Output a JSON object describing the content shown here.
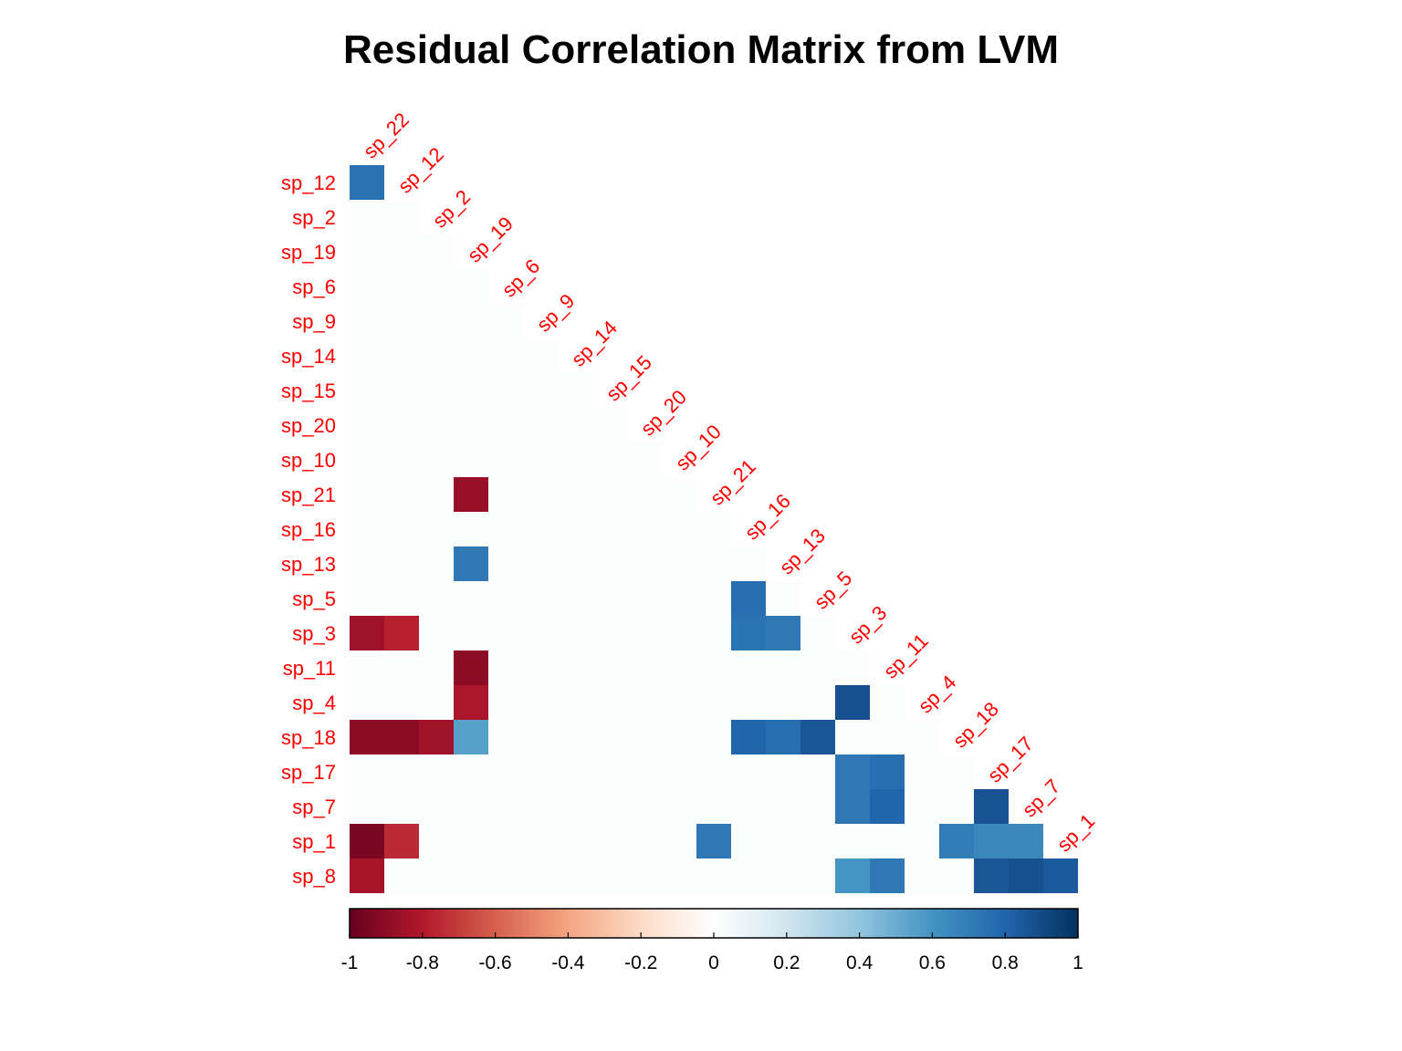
{
  "chart_data": {
    "type": "heatmap",
    "title": "Residual Correlation Matrix from LVM",
    "layout": "lower-triangle",
    "columns": [
      "sp_22",
      "sp_12",
      "sp_2",
      "sp_19",
      "sp_6",
      "sp_9",
      "sp_14",
      "sp_15",
      "sp_20",
      "sp_10",
      "sp_21",
      "sp_16",
      "sp_13",
      "sp_5",
      "sp_3",
      "sp_11",
      "sp_4",
      "sp_18",
      "sp_17",
      "sp_7",
      "sp_1"
    ],
    "rows": [
      "sp_12",
      "sp_2",
      "sp_19",
      "sp_6",
      "sp_9",
      "sp_14",
      "sp_15",
      "sp_20",
      "sp_10",
      "sp_21",
      "sp_16",
      "sp_13",
      "sp_5",
      "sp_3",
      "sp_11",
      "sp_4",
      "sp_18",
      "sp_17",
      "sp_7",
      "sp_1",
      "sp_8"
    ],
    "cells": [
      {
        "row": "sp_12",
        "col": "sp_22",
        "value": 0.75
      },
      {
        "row": "sp_21",
        "col": "sp_19",
        "value": -0.87
      },
      {
        "row": "sp_13",
        "col": "sp_19",
        "value": 0.72
      },
      {
        "row": "sp_5",
        "col": "sp_16",
        "value": 0.76
      },
      {
        "row": "sp_3",
        "col": "sp_22",
        "value": -0.85
      },
      {
        "row": "sp_3",
        "col": "sp_12",
        "value": -0.78
      },
      {
        "row": "sp_3",
        "col": "sp_16",
        "value": 0.74
      },
      {
        "row": "sp_3",
        "col": "sp_13",
        "value": 0.72
      },
      {
        "row": "sp_11",
        "col": "sp_19",
        "value": -0.9
      },
      {
        "row": "sp_4",
        "col": "sp_19",
        "value": -0.82
      },
      {
        "row": "sp_4",
        "col": "sp_3",
        "value": 0.88
      },
      {
        "row": "sp_18",
        "col": "sp_22",
        "value": -0.9
      },
      {
        "row": "sp_18",
        "col": "sp_12",
        "value": -0.9
      },
      {
        "row": "sp_18",
        "col": "sp_2",
        "value": -0.85
      },
      {
        "row": "sp_18",
        "col": "sp_19",
        "value": 0.55
      },
      {
        "row": "sp_18",
        "col": "sp_16",
        "value": 0.8
      },
      {
        "row": "sp_18",
        "col": "sp_13",
        "value": 0.76
      },
      {
        "row": "sp_18",
        "col": "sp_5",
        "value": 0.86
      },
      {
        "row": "sp_17",
        "col": "sp_3",
        "value": 0.72
      },
      {
        "row": "sp_17",
        "col": "sp_11",
        "value": 0.76
      },
      {
        "row": "sp_7",
        "col": "sp_3",
        "value": 0.72
      },
      {
        "row": "sp_7",
        "col": "sp_11",
        "value": 0.8
      },
      {
        "row": "sp_7",
        "col": "sp_17",
        "value": 0.87
      },
      {
        "row": "sp_1",
        "col": "sp_22",
        "value": -0.95
      },
      {
        "row": "sp_1",
        "col": "sp_12",
        "value": -0.75
      },
      {
        "row": "sp_1",
        "col": "sp_21",
        "value": 0.72
      },
      {
        "row": "sp_1",
        "col": "sp_18",
        "value": 0.7
      },
      {
        "row": "sp_1",
        "col": "sp_17",
        "value": 0.65
      },
      {
        "row": "sp_1",
        "col": "sp_7",
        "value": 0.65
      },
      {
        "row": "sp_8",
        "col": "sp_22",
        "value": -0.83
      },
      {
        "row": "sp_8",
        "col": "sp_3",
        "value": 0.6
      },
      {
        "row": "sp_8",
        "col": "sp_11",
        "value": 0.72
      },
      {
        "row": "sp_8",
        "col": "sp_17",
        "value": 0.86
      },
      {
        "row": "sp_8",
        "col": "sp_7",
        "value": 0.88
      },
      {
        "row": "sp_8",
        "col": "sp_1",
        "value": 0.84
      }
    ],
    "colorbar": {
      "range": [
        -1,
        1
      ],
      "ticks": [
        "-1",
        "-0.8",
        "-0.6",
        "-0.4",
        "-0.2",
        "0",
        "0.2",
        "0.4",
        "0.6",
        "0.8",
        "1"
      ],
      "tick_values": [
        -1,
        -0.8,
        -0.6,
        -0.4,
        -0.2,
        0,
        0.2,
        0.4,
        0.6,
        0.8,
        1
      ],
      "palette": [
        "#67001F",
        "#B2182B",
        "#D6604D",
        "#F4A582",
        "#FDDBC7",
        "#FFFFFF",
        "#D1E5F0",
        "#92C5DE",
        "#4393C3",
        "#2166AC",
        "#053061"
      ]
    },
    "empty_cell_color": "#FCFEFE",
    "label_color": "#FF0000"
  }
}
